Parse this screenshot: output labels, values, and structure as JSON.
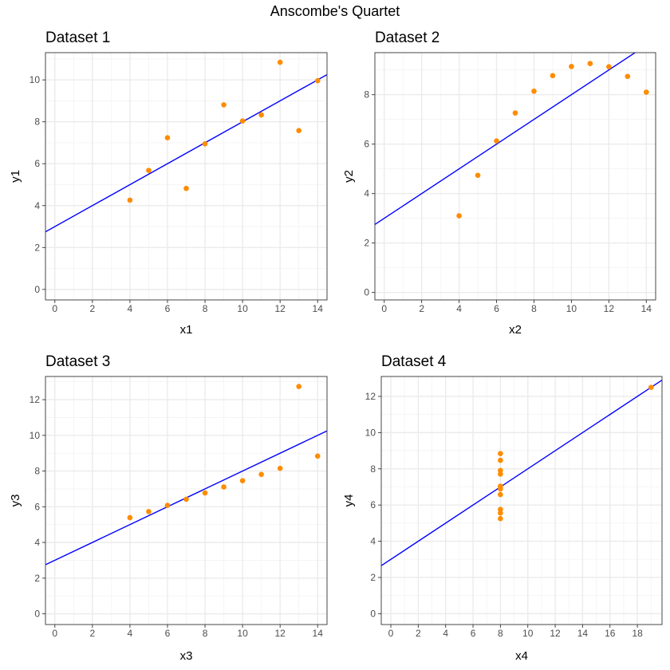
{
  "title": "Anscombe's Quartet",
  "colors": {
    "point": "#FF8C00",
    "line": "#0000FF",
    "grid_major": "#EBEBEB",
    "grid_minor": "#F3F3F3",
    "panel_border": "#333333",
    "tick_text": "#4D4D4D"
  },
  "chart_data": [
    {
      "type": "scatter",
      "title": "Dataset 1",
      "xlabel": "x1",
      "ylabel": "y1",
      "xlim": [
        -0.5,
        14.5
      ],
      "ylim": [
        -0.5,
        11.3
      ],
      "xticks": [
        0,
        2,
        4,
        6,
        8,
        10,
        12,
        14
      ],
      "yticks": [
        0,
        2,
        4,
        6,
        8,
        10
      ],
      "x": [
        10,
        8,
        13,
        9,
        11,
        14,
        6,
        4,
        12,
        7,
        5
      ],
      "y": [
        8.04,
        6.95,
        7.58,
        8.81,
        8.33,
        9.96,
        7.24,
        4.26,
        10.84,
        4.82,
        5.68
      ],
      "fit": {
        "intercept": 3.0,
        "slope": 0.5
      }
    },
    {
      "type": "scatter",
      "title": "Dataset 2",
      "xlabel": "x2",
      "ylabel": "y2",
      "xlim": [
        -0.5,
        14.5
      ],
      "ylim": [
        -0.3,
        9.7
      ],
      "xticks": [
        0,
        2,
        4,
        6,
        8,
        10,
        12,
        14
      ],
      "yticks": [
        0,
        2,
        4,
        6,
        8
      ],
      "x": [
        10,
        8,
        13,
        9,
        11,
        14,
        6,
        4,
        12,
        7,
        5
      ],
      "y": [
        9.14,
        8.14,
        8.74,
        8.77,
        9.26,
        8.1,
        6.13,
        3.1,
        9.13,
        7.26,
        4.74
      ],
      "fit": {
        "intercept": 3.0,
        "slope": 0.5
      }
    },
    {
      "type": "scatter",
      "title": "Dataset 3",
      "xlabel": "x3",
      "ylabel": "y3",
      "xlim": [
        -0.5,
        14.5
      ],
      "ylim": [
        -0.6,
        13.3
      ],
      "xticks": [
        0,
        2,
        4,
        6,
        8,
        10,
        12,
        14
      ],
      "yticks": [
        0,
        2,
        4,
        6,
        8,
        10,
        12
      ],
      "x": [
        10,
        8,
        13,
        9,
        11,
        14,
        6,
        4,
        12,
        7,
        5
      ],
      "y": [
        7.46,
        6.77,
        12.74,
        7.11,
        7.81,
        8.84,
        6.08,
        5.39,
        8.15,
        6.42,
        5.73
      ],
      "fit": {
        "intercept": 3.0,
        "slope": 0.5
      }
    },
    {
      "type": "scatter",
      "title": "Dataset 4",
      "xlabel": "x4",
      "ylabel": "y4",
      "xlim": [
        -0.7,
        19.8
      ],
      "ylim": [
        -0.6,
        13.1
      ],
      "xticks": [
        0,
        2,
        4,
        6,
        8,
        10,
        12,
        14,
        16,
        18
      ],
      "yticks": [
        0,
        2,
        4,
        6,
        8,
        10,
        12
      ],
      "x": [
        8,
        8,
        8,
        8,
        8,
        8,
        8,
        19,
        8,
        8,
        8
      ],
      "y": [
        6.58,
        5.76,
        7.71,
        8.84,
        8.47,
        7.04,
        5.25,
        12.5,
        5.56,
        7.91,
        6.89
      ],
      "fit": {
        "intercept": 3.0,
        "slope": 0.5
      }
    }
  ]
}
